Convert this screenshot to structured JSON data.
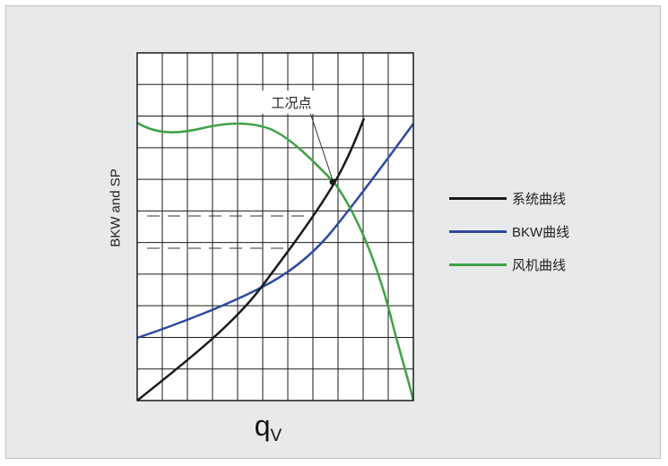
{
  "diagram": {
    "y_axis_label": "BKW and SP",
    "x_axis_label": "q",
    "x_axis_subscript": "V",
    "operating_point_label": "工况点",
    "legend": [
      {
        "label": "系统曲线",
        "color": "#1a1a1a"
      },
      {
        "label": "BKW曲线",
        "color": "#2f4aa0"
      },
      {
        "label": "风机曲线",
        "color": "#3fa146"
      }
    ],
    "colors": {
      "background": "#e8e9ea",
      "grid": "#1a1a1a",
      "system_curve": "#1a1a1a",
      "bkw_curve": "#2f4aa0",
      "fan_curve": "#3fa146"
    }
  }
}
